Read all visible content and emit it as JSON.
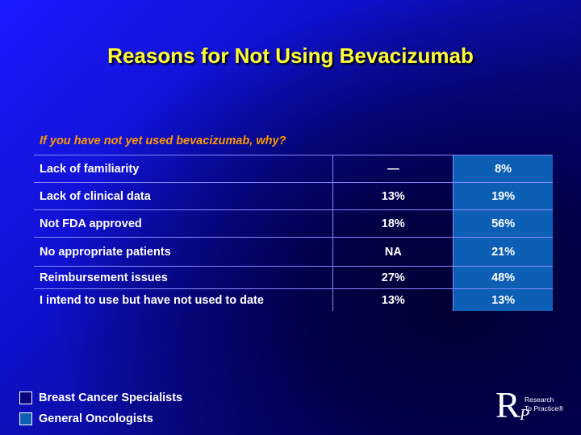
{
  "title": "Reasons for Not Using Bevacizumab",
  "question": "If you have not yet used bevacizumab, why?",
  "rows": [
    {
      "label": "Lack of familiarity",
      "breast": "—",
      "general": "8%"
    },
    {
      "label": "Lack of clinical data",
      "breast": "13%",
      "general": "19%"
    },
    {
      "label": "Not FDA approved",
      "breast": "18%",
      "general": "56%"
    },
    {
      "label": "No appropriate patients",
      "breast": "NA",
      "general": "21%"
    },
    {
      "label": "Reimbursement issues",
      "breast": "27%",
      "general": "48%"
    },
    {
      "label": "I intend to use but have not used to date",
      "breast": "13%",
      "general": "13%"
    }
  ],
  "legend": [
    {
      "label": "Breast Cancer Specialists",
      "color": "#050580"
    },
    {
      "label": "General Oncologists",
      "color": "#0c5fb4"
    }
  ],
  "logo": {
    "letter_r": "R",
    "letter_p": "P",
    "line1": "Research",
    "line2": "To Practice®"
  }
}
